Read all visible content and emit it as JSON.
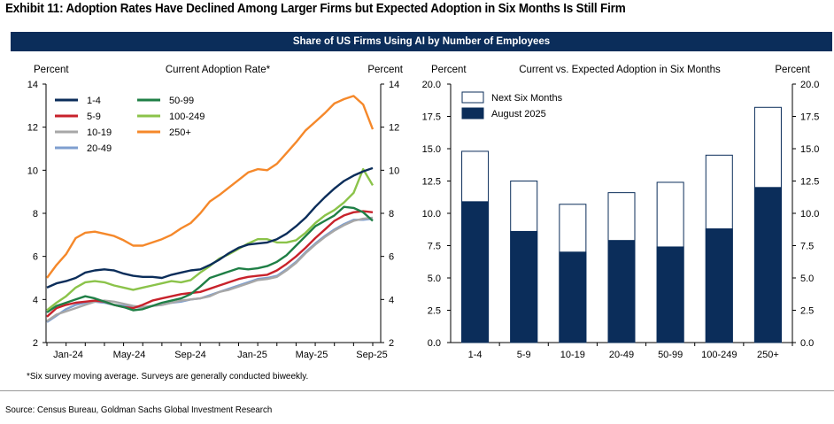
{
  "exhibit_title": "Exhibit 11: Adoption Rates Have Declined Among Larger Firms but Expected Adoption in Six Months Is Still Firm",
  "banner_title": "Share of US Firms Using AI by Number of Employees",
  "footnote": "*Six survey moving average. Surveys are generally conducted biweekly.",
  "source": "Source: Census Bureau, Goldman Sachs Global Investment Research",
  "chart_data": [
    {
      "type": "line",
      "title": "Current Adoption Rate*",
      "ylabel_left": "Percent",
      "ylabel_right": "Percent",
      "ylim": [
        2,
        14
      ],
      "yticks": [
        2,
        4,
        6,
        8,
        10,
        12,
        14
      ],
      "xticks": [
        "Jan-24",
        "May-24",
        "Sep-24",
        "Jan-25",
        "May-25",
        "Sep-25"
      ],
      "legend_placement": "top-left",
      "series": [
        {
          "name": "1-4",
          "color": "#0b2d5a",
          "values": [
            4.55,
            4.75,
            4.85,
            5.0,
            5.25,
            5.35,
            5.4,
            5.35,
            5.2,
            5.1,
            5.05,
            5.05,
            5.0,
            5.15,
            5.25,
            5.35,
            5.4,
            5.6,
            5.85,
            6.15,
            6.4,
            6.55,
            6.6,
            6.65,
            6.8,
            7.05,
            7.4,
            7.8,
            8.3,
            8.75,
            9.15,
            9.5,
            9.75,
            9.95,
            10.1
          ]
        },
        {
          "name": "5-9",
          "color": "#c8222b",
          "values": [
            3.2,
            3.6,
            3.75,
            3.85,
            3.9,
            3.95,
            3.9,
            3.75,
            3.65,
            3.6,
            3.75,
            3.95,
            4.05,
            4.15,
            4.25,
            4.3,
            4.35,
            4.5,
            4.65,
            4.8,
            4.95,
            5.05,
            5.1,
            5.15,
            5.35,
            5.65,
            6.0,
            6.4,
            6.85,
            7.25,
            7.65,
            7.9,
            8.05,
            8.1,
            8.05
          ]
        },
        {
          "name": "10-19",
          "color": "#a7a7a7",
          "values": [
            3.0,
            3.3,
            3.45,
            3.6,
            3.75,
            3.9,
            3.95,
            3.9,
            3.8,
            3.7,
            3.65,
            3.7,
            3.75,
            3.85,
            3.95,
            4.0,
            4.05,
            4.15,
            4.35,
            4.45,
            4.6,
            4.75,
            4.9,
            4.95,
            5.05,
            5.35,
            5.7,
            6.15,
            6.55,
            6.9,
            7.2,
            7.45,
            7.65,
            7.75,
            7.8
          ]
        },
        {
          "name": "20-49",
          "color": "#7f9fcf",
          "values": [
            2.95,
            3.25,
            3.55,
            3.75,
            3.85,
            3.9,
            3.85,
            3.75,
            3.7,
            3.65,
            3.65,
            3.7,
            3.75,
            3.85,
            3.9,
            4.0,
            4.05,
            4.2,
            4.35,
            4.5,
            4.65,
            4.8,
            4.95,
            5.0,
            5.1,
            5.4,
            5.75,
            6.2,
            6.6,
            6.95,
            7.25,
            7.5,
            7.7,
            7.7,
            7.75
          ]
        },
        {
          "name": "50-99",
          "color": "#1f7f46",
          "values": [
            3.4,
            3.7,
            3.85,
            4.0,
            4.15,
            4.05,
            3.9,
            3.75,
            3.65,
            3.5,
            3.55,
            3.7,
            3.85,
            3.95,
            4.05,
            4.25,
            4.6,
            5.0,
            5.15,
            5.3,
            5.45,
            5.4,
            5.45,
            5.55,
            5.75,
            6.05,
            6.5,
            6.95,
            7.4,
            7.65,
            7.9,
            8.3,
            8.25,
            8.05,
            7.65
          ]
        },
        {
          "name": "100-249",
          "color": "#8bc34a",
          "values": [
            3.5,
            3.85,
            4.15,
            4.55,
            4.8,
            4.85,
            4.8,
            4.65,
            4.55,
            4.45,
            4.55,
            4.65,
            4.75,
            4.85,
            4.8,
            4.9,
            5.25,
            5.55,
            5.9,
            6.1,
            6.35,
            6.6,
            6.8,
            6.8,
            6.65,
            6.65,
            6.75,
            7.1,
            7.55,
            7.9,
            8.15,
            8.5,
            8.95,
            10.05,
            9.3
          ]
        },
        {
          "name": "250+",
          "color": "#f5882a",
          "values": [
            5.0,
            5.6,
            6.1,
            6.85,
            7.1,
            7.15,
            7.05,
            6.95,
            6.75,
            6.5,
            6.5,
            6.65,
            6.8,
            7.0,
            7.3,
            7.55,
            8.0,
            8.55,
            8.85,
            9.2,
            9.55,
            9.9,
            10.05,
            10.0,
            10.3,
            10.8,
            11.3,
            11.85,
            12.25,
            12.65,
            13.1,
            13.3,
            13.45,
            13.05,
            11.9
          ]
        }
      ]
    },
    {
      "type": "bar",
      "title": "Current vs. Expected Adoption in Six Months",
      "ylabel_left": "Percent",
      "ylabel_right": "Percent",
      "ylim": [
        0,
        20
      ],
      "yticks": [
        "0.0",
        "2.5",
        "5.0",
        "7.5",
        "10.0",
        "12.5",
        "15.0",
        "17.5",
        "20.0"
      ],
      "categories": [
        "1-4",
        "5-9",
        "10-19",
        "20-49",
        "50-99",
        "100-249",
        "250+"
      ],
      "legend_placement": "top-left",
      "series": [
        {
          "name": "Next Six Months",
          "color": "#ffffff",
          "values": [
            14.8,
            12.5,
            10.7,
            11.6,
            12.4,
            14.5,
            18.2
          ]
        },
        {
          "name": "August 2025",
          "color": "#0b2d5a",
          "values": [
            10.9,
            8.6,
            7.0,
            7.9,
            7.4,
            8.8,
            12.0
          ]
        }
      ]
    }
  ]
}
